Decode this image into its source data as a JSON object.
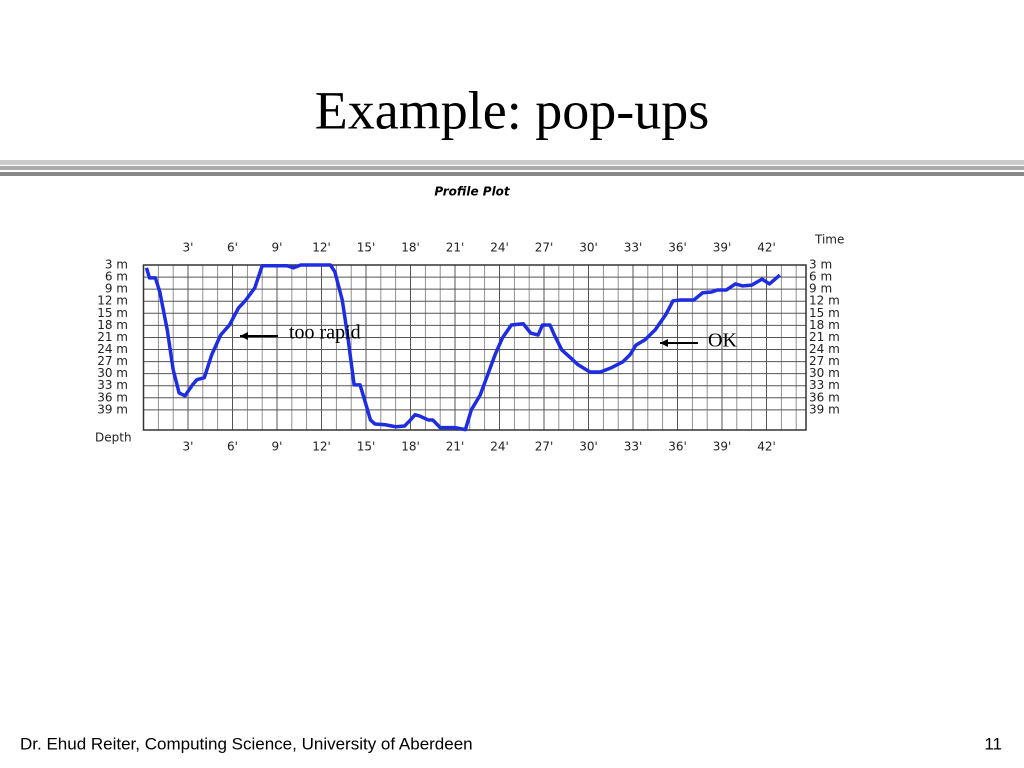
{
  "slide": {
    "title": "Example: pop-ups",
    "footer": "Dr. Ehud Reiter, Computing Science, University of Aberdeen",
    "page": "11"
  },
  "chart_data": {
    "type": "line",
    "title": "Profile Plot",
    "x_label": "Time",
    "y_label": "Depth",
    "x": [
      0.2,
      0.4,
      0.8,
      1.1,
      1.6,
      2.0,
      2.4,
      2.8,
      3.3,
      3.6,
      4.1,
      4.6,
      5.2,
      5.8,
      6.4,
      6.9,
      7.5,
      8.0,
      9.7,
      10.1,
      10.6,
      12.6,
      12.9,
      13.4,
      13.8,
      14.2,
      14.6,
      15.0,
      15.3,
      15.6,
      16.3,
      17.0,
      17.6,
      18.0,
      18.3,
      18.6,
      19.2,
      19.5,
      20.0,
      21.0,
      21.7,
      22.1,
      22.7,
      23.2,
      23.7,
      24.2,
      24.8,
      25.6,
      26.1,
      26.6,
      26.9,
      27.4,
      27.7,
      28.2,
      28.8,
      29.3,
      30.1,
      30.8,
      31.5,
      32.3,
      32.8,
      33.2,
      33.8,
      34.5,
      35.2,
      35.7,
      36.2,
      37.1,
      37.7,
      38.3,
      38.7,
      39.3,
      39.9,
      40.4,
      41.0,
      41.7,
      42.2,
      42.9
    ],
    "series": [
      {
        "name": "Depth",
        "color": "#1f2de0",
        "values": [
          3.7,
          6.2,
          6.2,
          9.7,
          19.1,
          29,
          34.8,
          35.5,
          32.8,
          31.5,
          31,
          25.3,
          20.4,
          17.9,
          13.7,
          11.7,
          8.7,
          3.2,
          3.2,
          3.7,
          3,
          3,
          4.7,
          11.7,
          21.6,
          32.8,
          32.8,
          37.7,
          41.5,
          42.5,
          42.7,
          43.2,
          43,
          41.5,
          40.2,
          40.5,
          41.5,
          41.5,
          43.4,
          43.4,
          43.9,
          39,
          35.3,
          30.3,
          25.3,
          21.1,
          17.9,
          17.6,
          19.9,
          20.4,
          17.9,
          17.9,
          20.4,
          24.1,
          26.1,
          27.8,
          29.6,
          29.6,
          28.6,
          27.1,
          25.3,
          22.9,
          21.6,
          19.1,
          15.4,
          11.9,
          11.7,
          11.7,
          9.9,
          9.7,
          9.2,
          9.2,
          7.7,
          8.2,
          8,
          6.5,
          7.7,
          5.5
        ]
      }
    ],
    "xlim": [
      0,
      45
    ],
    "ylim": [
      3,
      44
    ],
    "y_inverted": true,
    "grid": true,
    "xticks": [
      {
        "value": 3,
        "label": "3'"
      },
      {
        "value": 6,
        "label": "6'"
      },
      {
        "value": 9,
        "label": "9'"
      },
      {
        "value": 12,
        "label": "12'"
      },
      {
        "value": 15,
        "label": "15'"
      },
      {
        "value": 18,
        "label": "18'"
      },
      {
        "value": 21,
        "label": "21'"
      },
      {
        "value": 24,
        "label": "24'"
      },
      {
        "value": 27,
        "label": "27'"
      },
      {
        "value": 30,
        "label": "30'"
      },
      {
        "value": 33,
        "label": "33'"
      },
      {
        "value": 36,
        "label": "36'"
      },
      {
        "value": 39,
        "label": "39'"
      },
      {
        "value": 42,
        "label": "42'"
      }
    ],
    "yticks": [
      {
        "value": 3,
        "label": "3 m"
      },
      {
        "value": 6,
        "label": "6 m"
      },
      {
        "value": 9,
        "label": "9 m"
      },
      {
        "value": 12,
        "label": "12 m"
      },
      {
        "value": 15,
        "label": "15 m"
      },
      {
        "value": 18,
        "label": "18 m"
      },
      {
        "value": 21,
        "label": "21 m"
      },
      {
        "value": 24,
        "label": "24 m"
      },
      {
        "value": 27,
        "label": "27 m"
      },
      {
        "value": 30,
        "label": "30 m"
      },
      {
        "value": 33,
        "label": "33 m"
      },
      {
        "value": 36,
        "label": "36 m"
      },
      {
        "value": 39,
        "label": "39 m"
      }
    ],
    "annotations": [
      {
        "text": "too rapid"
      },
      {
        "text": "OK"
      }
    ]
  }
}
